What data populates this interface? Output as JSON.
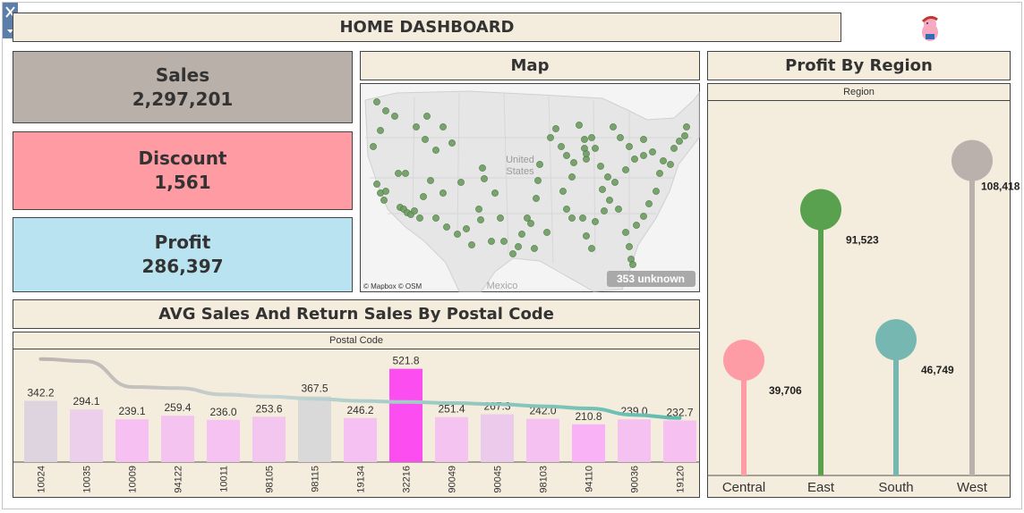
{
  "header": {
    "title": "HOME DASHBOARD"
  },
  "kpis": [
    {
      "label": "Sales",
      "value": "2,297,201",
      "color": "#bab0aa"
    },
    {
      "label": "Discount",
      "value": "1,561",
      "color": "#fe9ba3"
    },
    {
      "label": "Profit",
      "value": "286,397",
      "color": "#bae3f1"
    }
  ],
  "map": {
    "title": "Map",
    "country_label": "United States",
    "mexico_label": "Mexico",
    "attribution": "© Mapbox © OSM",
    "unknown_badge": "353 unknown"
  },
  "lollipop_title": "Profit By Region",
  "bar_title": "AVG Sales And Return Sales By Postal Code",
  "chart_data": [
    {
      "type": "bar",
      "header_label": "Postal Code",
      "categories": [
        "10024",
        "10035",
        "10009",
        "94122",
        "10011",
        "98105",
        "98115",
        "19134",
        "32216",
        "90049",
        "90045",
        "98103",
        "94110",
        "90036",
        "19120"
      ],
      "values": [
        342.2,
        294.1,
        239.1,
        259.4,
        236.0,
        253.6,
        367.5,
        246.2,
        521.8,
        251.4,
        267.3,
        242.0,
        210.8,
        239.0,
        232.7
      ],
      "value_labels": [
        "342.2",
        "294.1",
        "239.1",
        "259.4",
        "236.0",
        "253.6",
        "367.5",
        "246.2",
        "521.8",
        "251.4",
        "267.3",
        "242.0",
        "210.8",
        "239.0",
        "232.7"
      ],
      "bar_colors": [
        "#ded4e0",
        "#eccfeb",
        "#f6c1f2",
        "#f4c3ef",
        "#f6c2f1",
        "#f2c6ee",
        "#d9d9d9",
        "#f5c0f2",
        "#fc4ef0",
        "#f4c3ef",
        "#eccaeb",
        "#f5c1f1",
        "#f8b2f5",
        "#f4c1f0",
        "#f6c1f1"
      ],
      "line_values": [
        0.96,
        0.94,
        0.7,
        0.69,
        0.63,
        0.61,
        0.59,
        0.57,
        0.56,
        0.55,
        0.54,
        0.52,
        0.5,
        0.44,
        0.41
      ],
      "ylim": [
        0,
        550
      ]
    },
    {
      "type": "scatter",
      "header_label": "Region",
      "categories": [
        "Central",
        "East",
        "South",
        "West"
      ],
      "values": [
        39706,
        91523,
        46749,
        108418
      ],
      "value_labels": [
        "39,706",
        "91,523",
        "46,749",
        "108,418"
      ],
      "colors": [
        "#fd9ca4",
        "#59a14f",
        "#76b7b2",
        "#bab0ac"
      ],
      "ylim": [
        0,
        120000
      ]
    }
  ]
}
